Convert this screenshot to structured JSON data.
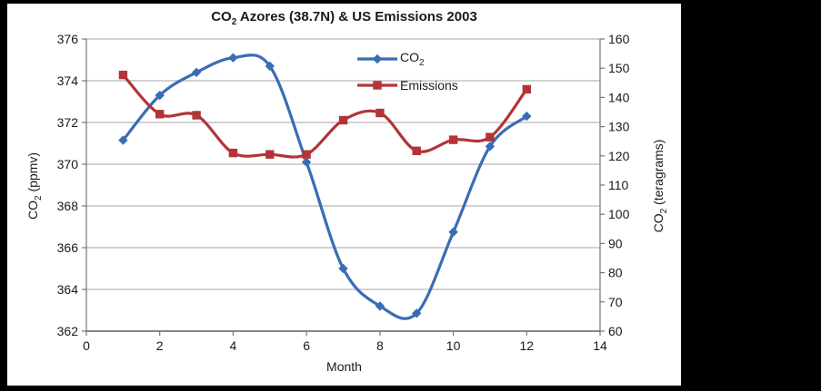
{
  "frame": {
    "background": "#000000",
    "panel_background": "#ffffff"
  },
  "chart_data": {
    "type": "line",
    "title": "CO2 Azores (38.7N) & US Emissions 2003",
    "title_parts": {
      "pre": "CO",
      "sub": "2",
      "post": " Azores (38.7N) & US Emissions 2003"
    },
    "xlabel": "Month",
    "grid": true,
    "legend_position": "top-center-inside",
    "x_axis": {
      "min": 0,
      "max": 14,
      "step": 2,
      "ticks": [
        0,
        2,
        4,
        6,
        8,
        10,
        12,
        14
      ]
    },
    "left_axis": {
      "label": "CO2 (ppmv)",
      "label_parts": {
        "pre": "CO",
        "sub": "2",
        "post": " (ppmv)"
      },
      "min": 362,
      "max": 376,
      "step": 2,
      "ticks": [
        362,
        364,
        366,
        368,
        370,
        372,
        374,
        376
      ]
    },
    "right_axis": {
      "label": "CO2 (teragrams)",
      "label_parts": {
        "pre": "CO",
        "sub": "2",
        "post": " (teragrams)"
      },
      "min": 60,
      "max": 160,
      "step": 10,
      "ticks": [
        60,
        70,
        80,
        90,
        100,
        110,
        120,
        130,
        140,
        150,
        160
      ]
    },
    "x": [
      1,
      2,
      3,
      4,
      5,
      6,
      7,
      8,
      9,
      10,
      11,
      12
    ],
    "series": [
      {
        "name": "CO2",
        "label_parts": {
          "pre": "CO",
          "sub": "2",
          "post": ""
        },
        "axis": "left",
        "color": "#3a6cb5",
        "marker": "diamond",
        "smooth": true,
        "values": [
          371.15,
          373.3,
          374.4,
          375.1,
          374.7,
          370.1,
          365.0,
          363.2,
          362.85,
          366.75,
          370.85,
          372.3
        ]
      },
      {
        "name": "Emissions",
        "label_parts": {
          "pre": "Emissions",
          "sub": "",
          "post": ""
        },
        "axis": "right",
        "color": "#b23438",
        "marker": "square",
        "smooth": true,
        "values": [
          147.7,
          134.3,
          133.9,
          121.0,
          120.5,
          120.5,
          132.2,
          134.7,
          121.7,
          125.5,
          126.4,
          142.8
        ]
      }
    ],
    "colors": {
      "gridline": "#a6a6a6",
      "axis": "#767676",
      "text": "#1a1a1a"
    }
  }
}
